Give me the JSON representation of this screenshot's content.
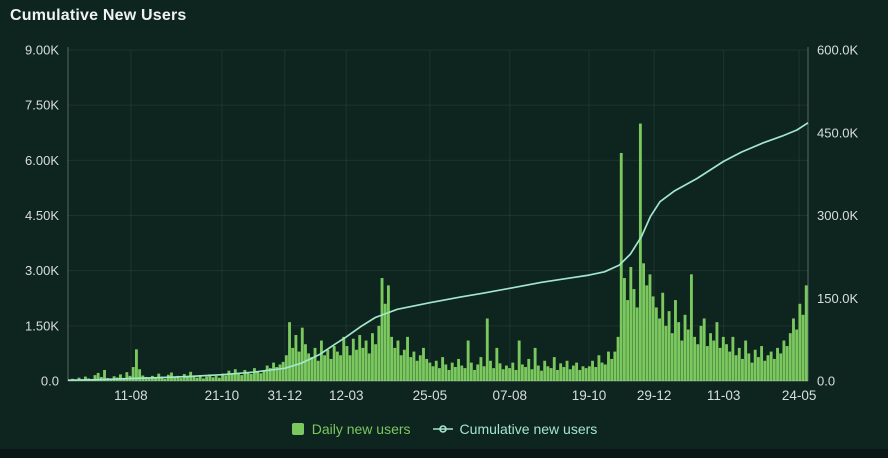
{
  "panel": {
    "title": "Cumulative New Users"
  },
  "colors": {
    "background": "#0e241f",
    "footer_strip": "#0a1917",
    "grid": "rgba(209,224,218,0.08)",
    "axis_line": "rgba(214,228,222,0.35)",
    "axis_text": "#d8dfdb",
    "title_text": "#eef3f1",
    "bar_green": "#7ac85e",
    "line_mint": "#a2e6cc"
  },
  "legend": {
    "position": "bottom",
    "items": [
      {
        "label": "Daily new users",
        "marker": "square",
        "color": "#7ac85e"
      },
      {
        "label": "Cumulative new users",
        "marker": "line-circle",
        "color": "#a2e6cc"
      }
    ]
  },
  "chart_data": {
    "type": "bar",
    "title": "Cumulative New Users",
    "xlabel": "",
    "ylabel": "",
    "grid": true,
    "legend_position": "bottom",
    "left_axis": {
      "max": 9000,
      "values": [
        0,
        1500,
        3000,
        4500,
        6000,
        7500,
        9000
      ],
      "labels": [
        "0.0",
        "1.50K",
        "3.00K",
        "4.50K",
        "6.00K",
        "7.50K",
        "9.00K"
      ]
    },
    "right_axis": {
      "max": 600000,
      "values": [
        0,
        150000,
        300000,
        450000,
        600000
      ],
      "labels": [
        "0.0",
        "150.0K",
        "300.0K",
        "450.0K",
        "600.0K"
      ]
    },
    "x_axis": {
      "ticks": [
        {
          "t": 0.085,
          "label": "11-08"
        },
        {
          "t": 0.208,
          "label": "21-10"
        },
        {
          "t": 0.293,
          "label": "31-12"
        },
        {
          "t": 0.376,
          "label": "12-03"
        },
        {
          "t": 0.489,
          "label": "25-05"
        },
        {
          "t": 0.597,
          "label": "07-08"
        },
        {
          "t": 0.704,
          "label": "19-10"
        },
        {
          "t": 0.792,
          "label": "29-12"
        },
        {
          "t": 0.886,
          "label": "11-03"
        },
        {
          "t": 0.988,
          "label": "24-05"
        }
      ]
    },
    "series": [
      {
        "name": "Daily new users",
        "type": "bar",
        "axis": "left",
        "color": "#7ac85e",
        "values": [
          20,
          60,
          35,
          90,
          45,
          120,
          70,
          50,
          160,
          220,
          110,
          300,
          80,
          55,
          130,
          95,
          180,
          75,
          240,
          140,
          380,
          860,
          320,
          150,
          110,
          90,
          140,
          70,
          200,
          120,
          60,
          170,
          230,
          100,
          140,
          80,
          190,
          110,
          250,
          130,
          90,
          160,
          70,
          120,
          180,
          100,
          140,
          90,
          200,
          150,
          280,
          180,
          320,
          220,
          160,
          300,
          240,
          190,
          350,
          260,
          210,
          300,
          420,
          350,
          500,
          380,
          450,
          520,
          700,
          1600,
          900,
          1250,
          800,
          1450,
          1000,
          750,
          650,
          900,
          550,
          1100,
          700,
          850,
          600,
          950,
          800,
          700,
          1200,
          950,
          700,
          1150,
          850,
          1250,
          900,
          1100,
          750,
          1300,
          1000,
          1500,
          2800,
          2100,
          2600,
          1200,
          900,
          1100,
          700,
          850,
          1200,
          650,
          800,
          550,
          700,
          900,
          600,
          500,
          400,
          550,
          350,
          650,
          450,
          300,
          500,
          380,
          600,
          420,
          350,
          1100,
          500,
          300,
          450,
          650,
          400,
          1700,
          550,
          350,
          900,
          480,
          320,
          420,
          350,
          500,
          300,
          1100,
          450,
          380,
          600,
          320,
          900,
          420,
          280,
          550,
          400,
          350,
          650,
          300,
          480,
          380,
          550,
          320,
          420,
          500,
          300,
          400,
          350,
          400,
          550,
          380,
          700,
          500,
          450,
          800,
          600,
          800,
          1200,
          6200,
          2800,
          2200,
          3100,
          2500,
          2000,
          7000,
          3200,
          2600,
          2900,
          2300,
          2000,
          1700,
          2400,
          1500,
          1900,
          1300,
          2200,
          1600,
          1100,
          1800,
          1400,
          2900,
          1200,
          1000,
          1500,
          1700,
          950,
          1300,
          1100,
          1600,
          900,
          1200,
          1000,
          800,
          1200,
          700,
          900,
          600,
          1100,
          750,
          500,
          850,
          650,
          950,
          550,
          700,
          800,
          600,
          900,
          750,
          1100,
          950,
          1300,
          1700,
          1400,
          2100,
          1800,
          2600
        ]
      },
      {
        "name": "Cumulative new users",
        "type": "line",
        "axis": "right",
        "color": "#a2e6cc",
        "points": [
          {
            "t": 0.0,
            "v": 1500
          },
          {
            "t": 0.03,
            "v": 2200
          },
          {
            "t": 0.06,
            "v": 3200
          },
          {
            "t": 0.085,
            "v": 4500
          },
          {
            "t": 0.12,
            "v": 6000
          },
          {
            "t": 0.16,
            "v": 8000
          },
          {
            "t": 0.208,
            "v": 11500
          },
          {
            "t": 0.25,
            "v": 16000
          },
          {
            "t": 0.293,
            "v": 23000
          },
          {
            "t": 0.315,
            "v": 32000
          },
          {
            "t": 0.34,
            "v": 48000
          },
          {
            "t": 0.36,
            "v": 66000
          },
          {
            "t": 0.376,
            "v": 80000
          },
          {
            "t": 0.395,
            "v": 98000
          },
          {
            "t": 0.415,
            "v": 115000
          },
          {
            "t": 0.445,
            "v": 130000
          },
          {
            "t": 0.489,
            "v": 142000
          },
          {
            "t": 0.53,
            "v": 152000
          },
          {
            "t": 0.56,
            "v": 159000
          },
          {
            "t": 0.597,
            "v": 168000
          },
          {
            "t": 0.64,
            "v": 179000
          },
          {
            "t": 0.68,
            "v": 187000
          },
          {
            "t": 0.704,
            "v": 192000
          },
          {
            "t": 0.725,
            "v": 198000
          },
          {
            "t": 0.745,
            "v": 210000
          },
          {
            "t": 0.76,
            "v": 230000
          },
          {
            "t": 0.775,
            "v": 262000
          },
          {
            "t": 0.787,
            "v": 298000
          },
          {
            "t": 0.8,
            "v": 325000
          },
          {
            "t": 0.82,
            "v": 345000
          },
          {
            "t": 0.85,
            "v": 367000
          },
          {
            "t": 0.886,
            "v": 398000
          },
          {
            "t": 0.91,
            "v": 415000
          },
          {
            "t": 0.94,
            "v": 432000
          },
          {
            "t": 0.965,
            "v": 444000
          },
          {
            "t": 0.985,
            "v": 455000
          },
          {
            "t": 1.0,
            "v": 468000
          }
        ]
      }
    ]
  }
}
